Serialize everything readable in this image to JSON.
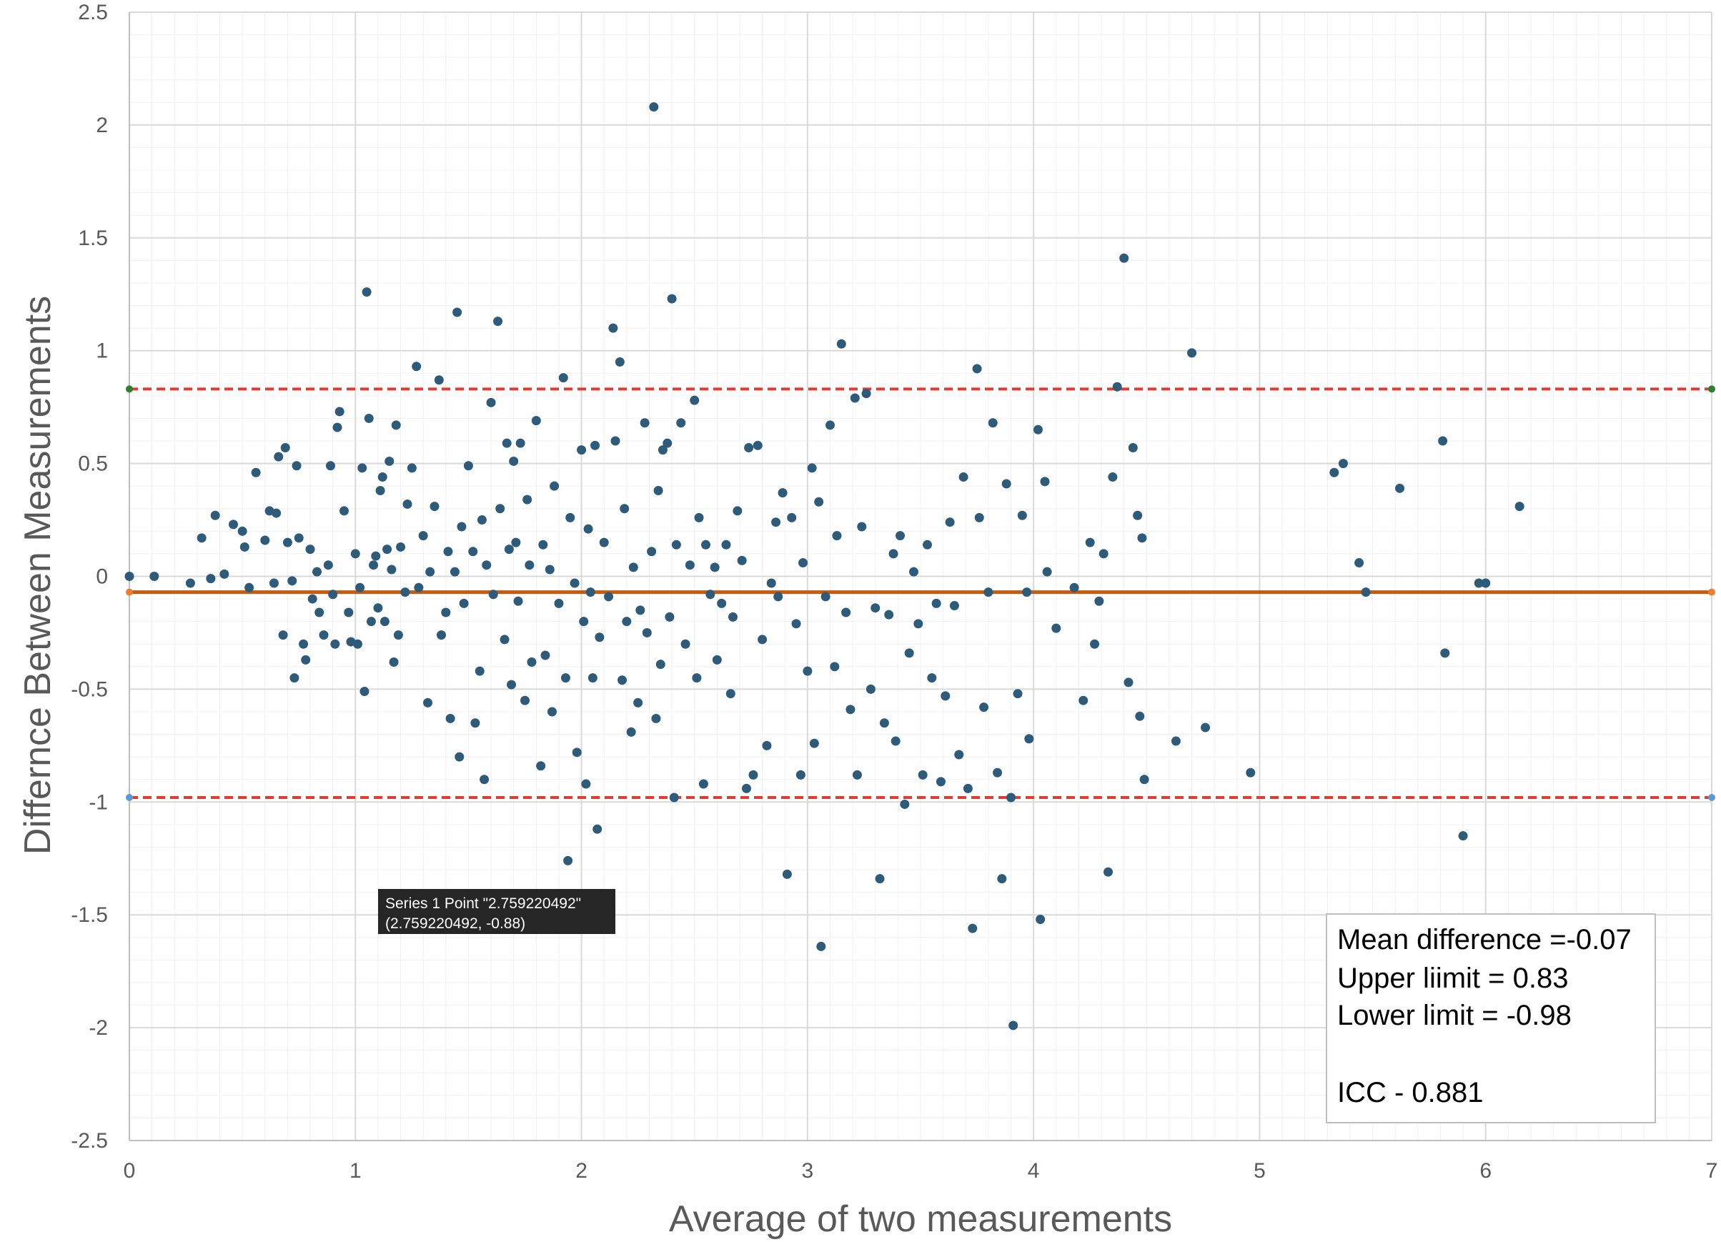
{
  "chart_data": {
    "type": "scatter",
    "xlabel": "Average of two measurements",
    "ylabel": "Differnce Between Measurements",
    "xlim": [
      0,
      7
    ],
    "ylim": [
      -2.5,
      2.5
    ],
    "x_ticks": [
      "0",
      "1",
      "2",
      "3",
      "4",
      "5",
      "6",
      "7"
    ],
    "y_ticks": [
      "2.5",
      "2",
      "1.5",
      "1",
      "0.5",
      "0",
      "-0.5",
      "-1",
      "-1.5",
      "-2",
      "-2.5"
    ],
    "grid": true,
    "legend": "none",
    "colors": {
      "points": "#2E5B7A",
      "mean_line": "#C55A11",
      "limit_lines": "#E03C31",
      "major_grid": "#D9D9D9",
      "minor_grid": "#F0F0F0"
    },
    "reference_lines": [
      {
        "name": "Mean difference",
        "y": -0.07,
        "style": "solid"
      },
      {
        "name": "Upper limit",
        "y": 0.83,
        "style": "dashed"
      },
      {
        "name": "Lower limit",
        "y": -0.98,
        "style": "dashed"
      }
    ],
    "annotation": {
      "lines": [
        "Mean difference =-0.07",
        "Upper liimit = 0.83",
        "Lower limit = -0.98",
        "",
        "ICC - 0.881"
      ]
    },
    "tooltip": {
      "line1": "Series 1 Point \"2.759220492\"",
      "line2": "(2.759220492, -0.88)"
    },
    "series": [
      {
        "points": [
          [
            0.0,
            0.0
          ],
          [
            0.11,
            0.0
          ],
          [
            0.27,
            -0.03
          ],
          [
            0.32,
            0.17
          ],
          [
            0.36,
            -0.01
          ],
          [
            0.38,
            0.27
          ],
          [
            0.42,
            0.01
          ],
          [
            0.46,
            0.23
          ],
          [
            0.5,
            0.2
          ],
          [
            0.51,
            0.13
          ],
          [
            0.53,
            -0.05
          ],
          [
            0.56,
            0.46
          ],
          [
            0.6,
            0.16
          ],
          [
            0.62,
            0.29
          ],
          [
            0.64,
            -0.03
          ],
          [
            0.65,
            0.28
          ],
          [
            0.66,
            0.53
          ],
          [
            0.68,
            -0.26
          ],
          [
            0.69,
            0.57
          ],
          [
            0.7,
            0.15
          ],
          [
            0.72,
            -0.02
          ],
          [
            0.73,
            -0.45
          ],
          [
            0.74,
            0.49
          ],
          [
            0.75,
            0.17
          ],
          [
            0.77,
            -0.3
          ],
          [
            0.78,
            -0.37
          ],
          [
            0.8,
            0.12
          ],
          [
            0.81,
            -0.1
          ],
          [
            0.83,
            0.02
          ],
          [
            0.84,
            -0.16
          ],
          [
            0.86,
            -0.26
          ],
          [
            0.88,
            0.05
          ],
          [
            0.89,
            0.49
          ],
          [
            0.9,
            -0.08
          ],
          [
            0.91,
            -0.3
          ],
          [
            0.92,
            0.66
          ],
          [
            0.93,
            0.73
          ],
          [
            0.95,
            0.29
          ],
          [
            0.97,
            -0.16
          ],
          [
            0.98,
            -0.29
          ],
          [
            1.0,
            0.1
          ],
          [
            1.01,
            -0.3
          ],
          [
            1.02,
            -0.05
          ],
          [
            1.03,
            0.48
          ],
          [
            1.04,
            -0.51
          ],
          [
            1.05,
            1.26
          ],
          [
            1.06,
            0.7
          ],
          [
            1.07,
            -0.2
          ],
          [
            1.08,
            0.05
          ],
          [
            1.09,
            0.09
          ],
          [
            1.1,
            -0.14
          ],
          [
            1.11,
            0.38
          ],
          [
            1.12,
            0.44
          ],
          [
            1.13,
            -0.2
          ],
          [
            1.14,
            0.12
          ],
          [
            1.15,
            0.51
          ],
          [
            1.16,
            0.03
          ],
          [
            1.17,
            -0.38
          ],
          [
            1.18,
            0.67
          ],
          [
            1.19,
            -0.26
          ],
          [
            1.2,
            0.13
          ],
          [
            1.22,
            -0.07
          ],
          [
            1.23,
            0.32
          ],
          [
            1.25,
            0.48
          ],
          [
            1.27,
            0.93
          ],
          [
            1.28,
            -0.05
          ],
          [
            1.3,
            0.18
          ],
          [
            1.32,
            -0.56
          ],
          [
            1.33,
            0.02
          ],
          [
            1.35,
            0.31
          ],
          [
            1.37,
            0.87
          ],
          [
            1.38,
            -0.26
          ],
          [
            1.4,
            -0.16
          ],
          [
            1.41,
            0.11
          ],
          [
            1.42,
            -0.63
          ],
          [
            1.44,
            0.02
          ],
          [
            1.45,
            1.17
          ],
          [
            1.46,
            -0.8
          ],
          [
            1.47,
            0.22
          ],
          [
            1.48,
            -0.12
          ],
          [
            1.5,
            0.49
          ],
          [
            1.52,
            0.11
          ],
          [
            1.53,
            -0.65
          ],
          [
            1.55,
            -0.42
          ],
          [
            1.56,
            0.25
          ],
          [
            1.57,
            -0.9
          ],
          [
            1.58,
            0.05
          ],
          [
            1.6,
            0.77
          ],
          [
            1.61,
            -0.08
          ],
          [
            1.63,
            1.13
          ],
          [
            1.64,
            0.3
          ],
          [
            1.66,
            -0.28
          ],
          [
            1.67,
            0.59
          ],
          [
            1.68,
            0.12
          ],
          [
            1.69,
            -0.48
          ],
          [
            1.7,
            0.51
          ],
          [
            1.71,
            0.15
          ],
          [
            1.72,
            -0.11
          ],
          [
            1.73,
            0.59
          ],
          [
            1.75,
            -0.55
          ],
          [
            1.76,
            0.34
          ],
          [
            1.77,
            0.05
          ],
          [
            1.78,
            -0.38
          ],
          [
            1.8,
            0.69
          ],
          [
            1.82,
            -0.84
          ],
          [
            1.83,
            0.14
          ],
          [
            1.84,
            -0.35
          ],
          [
            1.86,
            0.03
          ],
          [
            1.87,
            -0.6
          ],
          [
            1.88,
            0.4
          ],
          [
            1.9,
            -0.12
          ],
          [
            1.92,
            0.88
          ],
          [
            1.93,
            -0.45
          ],
          [
            1.94,
            -1.26
          ],
          [
            1.95,
            0.26
          ],
          [
            1.97,
            -0.03
          ],
          [
            1.98,
            -0.78
          ],
          [
            2.0,
            0.56
          ],
          [
            2.01,
            -0.2
          ],
          [
            2.02,
            -0.92
          ],
          [
            2.03,
            0.21
          ],
          [
            2.04,
            -0.07
          ],
          [
            2.05,
            -0.45
          ],
          [
            2.06,
            0.58
          ],
          [
            2.07,
            -1.12
          ],
          [
            2.08,
            -0.27
          ],
          [
            2.1,
            0.15
          ],
          [
            2.12,
            -0.09
          ],
          [
            2.14,
            1.1
          ],
          [
            2.15,
            0.6
          ],
          [
            2.17,
            0.95
          ],
          [
            2.18,
            -0.46
          ],
          [
            2.19,
            0.3
          ],
          [
            2.2,
            -0.2
          ],
          [
            2.22,
            -0.69
          ],
          [
            2.23,
            0.04
          ],
          [
            2.25,
            -0.56
          ],
          [
            2.26,
            -0.15
          ],
          [
            2.28,
            0.68
          ],
          [
            2.29,
            -0.25
          ],
          [
            2.31,
            0.11
          ],
          [
            2.32,
            2.08
          ],
          [
            2.33,
            -0.63
          ],
          [
            2.34,
            0.38
          ],
          [
            2.35,
            -0.39
          ],
          [
            2.36,
            0.56
          ],
          [
            2.38,
            0.59
          ],
          [
            2.39,
            -0.18
          ],
          [
            2.4,
            1.23
          ],
          [
            2.41,
            -0.98
          ],
          [
            2.42,
            0.14
          ],
          [
            2.44,
            0.68
          ],
          [
            2.46,
            -0.3
          ],
          [
            2.48,
            0.05
          ],
          [
            2.5,
            0.78
          ],
          [
            2.51,
            -0.45
          ],
          [
            2.52,
            0.26
          ],
          [
            2.54,
            -0.92
          ],
          [
            2.55,
            0.14
          ],
          [
            2.57,
            -0.08
          ],
          [
            2.59,
            0.04
          ],
          [
            2.6,
            -0.37
          ],
          [
            2.62,
            -0.12
          ],
          [
            2.64,
            0.14
          ],
          [
            2.66,
            -0.52
          ],
          [
            2.67,
            -0.18
          ],
          [
            2.69,
            0.29
          ],
          [
            2.71,
            0.07
          ],
          [
            2.73,
            -0.94
          ],
          [
            2.74,
            0.57
          ],
          [
            2.76,
            -0.88
          ],
          [
            2.78,
            0.58
          ],
          [
            2.8,
            -0.28
          ],
          [
            2.82,
            -0.75
          ],
          [
            2.84,
            -0.03
          ],
          [
            2.86,
            0.24
          ],
          [
            2.87,
            -0.09
          ],
          [
            2.89,
            0.37
          ],
          [
            2.91,
            -1.32
          ],
          [
            2.93,
            0.26
          ],
          [
            2.95,
            -0.21
          ],
          [
            2.97,
            -0.88
          ],
          [
            2.98,
            0.06
          ],
          [
            3.0,
            -0.42
          ],
          [
            3.02,
            0.48
          ],
          [
            3.03,
            -0.74
          ],
          [
            3.05,
            0.33
          ],
          [
            3.06,
            -1.64
          ],
          [
            3.08,
            -0.09
          ],
          [
            3.1,
            0.67
          ],
          [
            3.12,
            -0.4
          ],
          [
            3.13,
            0.18
          ],
          [
            3.15,
            1.03
          ],
          [
            3.17,
            -0.16
          ],
          [
            3.19,
            -0.59
          ],
          [
            3.21,
            0.79
          ],
          [
            3.22,
            -0.88
          ],
          [
            3.24,
            0.22
          ],
          [
            3.26,
            0.81
          ],
          [
            3.28,
            -0.5
          ],
          [
            3.3,
            -0.14
          ],
          [
            3.32,
            -1.34
          ],
          [
            3.34,
            -0.65
          ],
          [
            3.36,
            -0.17
          ],
          [
            3.38,
            0.1
          ],
          [
            3.39,
            -0.73
          ],
          [
            3.41,
            0.18
          ],
          [
            3.43,
            -1.01
          ],
          [
            3.45,
            -0.34
          ],
          [
            3.47,
            0.02
          ],
          [
            3.49,
            -0.21
          ],
          [
            3.51,
            -0.88
          ],
          [
            3.53,
            0.14
          ],
          [
            3.55,
            -0.45
          ],
          [
            3.57,
            -0.12
          ],
          [
            3.59,
            -0.91
          ],
          [
            3.61,
            -0.53
          ],
          [
            3.63,
            0.24
          ],
          [
            3.65,
            -0.13
          ],
          [
            3.67,
            -0.79
          ],
          [
            3.69,
            0.44
          ],
          [
            3.71,
            -0.94
          ],
          [
            3.73,
            -1.56
          ],
          [
            3.75,
            0.92
          ],
          [
            3.76,
            0.26
          ],
          [
            3.78,
            -0.58
          ],
          [
            3.8,
            -0.07
          ],
          [
            3.82,
            0.68
          ],
          [
            3.84,
            -0.87
          ],
          [
            3.86,
            -1.34
          ],
          [
            3.88,
            0.41
          ],
          [
            3.9,
            -0.98
          ],
          [
            3.91,
            -1.99
          ],
          [
            3.93,
            -0.52
          ],
          [
            3.95,
            0.27
          ],
          [
            3.97,
            -0.07
          ],
          [
            3.98,
            -0.72
          ],
          [
            4.02,
            0.65
          ],
          [
            4.03,
            -1.52
          ],
          [
            4.05,
            0.42
          ],
          [
            4.06,
            0.02
          ],
          [
            4.1,
            -0.23
          ],
          [
            4.18,
            -0.05
          ],
          [
            4.22,
            -0.55
          ],
          [
            4.25,
            0.15
          ],
          [
            4.27,
            -0.3
          ],
          [
            4.29,
            -0.11
          ],
          [
            4.31,
            0.1
          ],
          [
            4.33,
            -1.31
          ],
          [
            4.35,
            0.44
          ],
          [
            4.37,
            0.84
          ],
          [
            4.4,
            1.41
          ],
          [
            4.42,
            -0.47
          ],
          [
            4.44,
            0.57
          ],
          [
            4.46,
            0.27
          ],
          [
            4.47,
            -0.62
          ],
          [
            4.48,
            0.17
          ],
          [
            4.49,
            -0.9
          ],
          [
            4.63,
            -0.73
          ],
          [
            4.7,
            0.99
          ],
          [
            4.76,
            -0.67
          ],
          [
            4.96,
            -0.87
          ],
          [
            5.33,
            0.46
          ],
          [
            5.37,
            0.5
          ],
          [
            5.44,
            0.06
          ],
          [
            5.47,
            -0.07
          ],
          [
            5.62,
            0.39
          ],
          [
            5.81,
            0.6
          ],
          [
            5.82,
            -0.34
          ],
          [
            5.9,
            -1.15
          ],
          [
            5.97,
            -0.03
          ],
          [
            6.0,
            -0.03
          ],
          [
            6.15,
            0.31
          ]
        ]
      }
    ]
  }
}
